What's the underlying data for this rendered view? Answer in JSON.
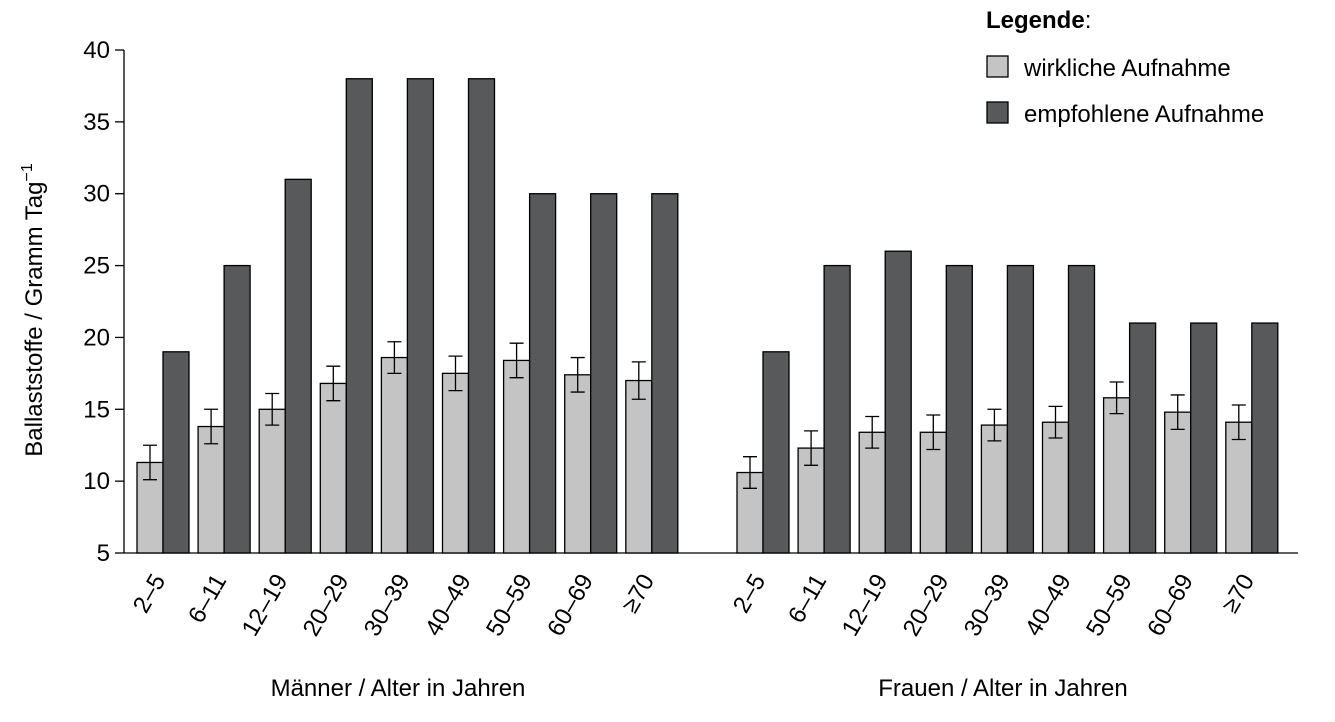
{
  "chart_data": {
    "type": "bar",
    "ylabel": "Ballaststoffe / Gramm Tag",
    "ylabel_sup": "−1",
    "ylim": [
      5,
      40
    ],
    "yticks": [
      5,
      10,
      15,
      20,
      25,
      30,
      35,
      40
    ],
    "legend": {
      "title": "Legende",
      "title_suffix": ":",
      "placement": "top-right"
    },
    "colors": {
      "actual": "#c4c4c4",
      "recommended": "#58595b"
    },
    "series_names": [
      "wirkliche Aufnahme",
      "empfohlene Aufnahme"
    ],
    "groups": [
      {
        "label": "Männer / Alter in Jahren",
        "categories": [
          "2–5",
          "6–11",
          "12–19",
          "20–29",
          "30–39",
          "40–49",
          "50–59",
          "60–69",
          "≥70"
        ],
        "series": [
          {
            "name": "wirkliche Aufnahme",
            "values": [
              11.3,
              13.8,
              15.0,
              16.8,
              18.6,
              17.5,
              18.4,
              17.4,
              17.0
            ],
            "error": [
              1.2,
              1.2,
              1.1,
              1.2,
              1.1,
              1.2,
              1.2,
              1.2,
              1.3
            ]
          },
          {
            "name": "empfohlene Aufnahme",
            "values": [
              19,
              25,
              31,
              38,
              38,
              38,
              30,
              30,
              30
            ]
          }
        ]
      },
      {
        "label": "Frauen / Alter in Jahren",
        "categories": [
          "2–5",
          "6–11",
          "12–19",
          "20–29",
          "30–39",
          "40–49",
          "50–59",
          "60–69",
          "≥70"
        ],
        "series": [
          {
            "name": "wirkliche Aufnahme",
            "values": [
              10.6,
              12.3,
              13.4,
              13.4,
              13.9,
              14.1,
              15.8,
              14.8,
              14.1
            ],
            "error": [
              1.1,
              1.2,
              1.1,
              1.2,
              1.1,
              1.1,
              1.1,
              1.2,
              1.2
            ]
          },
          {
            "name": "empfohlene Aufnahme",
            "values": [
              19,
              25,
              26,
              25,
              25,
              25,
              21,
              21,
              21
            ]
          }
        ]
      }
    ]
  }
}
